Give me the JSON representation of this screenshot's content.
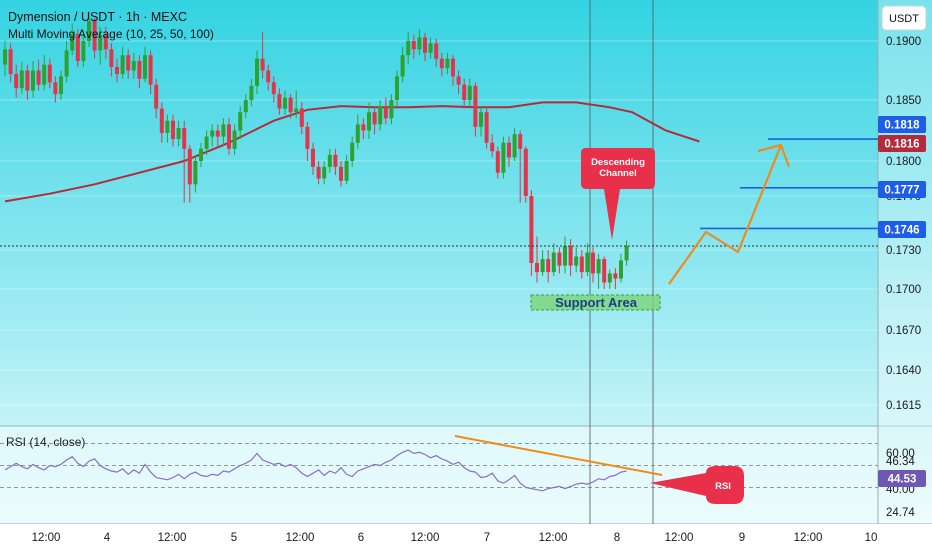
{
  "header": {
    "symbol_line": "Dymension / USDT · 1h · MEXC",
    "indicator_line": "Multi Moving Average (10, 25, 50, 100)",
    "currency_button": "USDT"
  },
  "colors": {
    "bg_top": "#3fd6e3",
    "bg_bottom": "#e6fbfd",
    "candle_up": "#2fa12f",
    "candle_down": "#e5334a",
    "ma": "#b52a3a",
    "blue_line": "#1e5ee6",
    "orange": "#f08a1c",
    "rsi_line": "#8a6fc9",
    "callout_red": "#e8304a",
    "support_fill": "#7fd67f"
  },
  "chart_data": {
    "type": "candlestick",
    "main_y_ticks": [
      "0.1900",
      "0.1850",
      "0.1800",
      "0.1770",
      "0.1730",
      "0.1700",
      "0.1670",
      "0.1640",
      "0.1615"
    ],
    "price_labels": [
      {
        "text": "0.1818",
        "value": 0.1818,
        "color": "#1e5ee6"
      },
      {
        "text": "0.1816",
        "value": 0.1816,
        "color": "#b52a3a"
      },
      {
        "text": "0.1777",
        "value": 0.1777,
        "color": "#1e5ee6"
      },
      {
        "text": "0.1746",
        "value": 0.1746,
        "color": "#1e5ee6"
      }
    ],
    "target_levels": [
      0.1818,
      0.1777,
      0.1746
    ],
    "last_price": 0.1733,
    "x_ticks": [
      "12:00",
      "4",
      "12:00",
      "5",
      "12:00",
      "6",
      "12:00",
      "7",
      "12:00",
      "8",
      "12:00",
      "9",
      "12:00",
      "10"
    ],
    "candles": [
      [
        0.188,
        0.1893,
        0.187,
        0.19
      ],
      [
        0.1893,
        0.1872,
        0.1865,
        0.1898
      ],
      [
        0.1872,
        0.186,
        0.1852,
        0.188
      ],
      [
        0.186,
        0.1875,
        0.1855,
        0.1882
      ],
      [
        0.1875,
        0.1858,
        0.185,
        0.188
      ],
      [
        0.1858,
        0.1875,
        0.1852,
        0.1883
      ],
      [
        0.1875,
        0.1863,
        0.1858,
        0.1884
      ],
      [
        0.1863,
        0.188,
        0.1858,
        0.1888
      ],
      [
        0.188,
        0.1865,
        0.186,
        0.1885
      ],
      [
        0.1865,
        0.1855,
        0.1848,
        0.187
      ],
      [
        0.1855,
        0.187,
        0.185,
        0.1875
      ],
      [
        0.187,
        0.1892,
        0.1865,
        0.19
      ],
      [
        0.1892,
        0.1906,
        0.1888,
        0.1915
      ],
      [
        0.1906,
        0.1883,
        0.1878,
        0.191
      ],
      [
        0.1883,
        0.19,
        0.1878,
        0.1908
      ],
      [
        0.19,
        0.1917,
        0.1895,
        0.1925
      ],
      [
        0.1917,
        0.1892,
        0.1885,
        0.192
      ],
      [
        0.1892,
        0.1905,
        0.188,
        0.1912
      ],
      [
        0.1905,
        0.1893,
        0.1885,
        0.1912
      ],
      [
        0.1893,
        0.1878,
        0.187,
        0.1898
      ],
      [
        0.1878,
        0.1872,
        0.1865,
        0.1885
      ],
      [
        0.1872,
        0.1888,
        0.1868,
        0.1895
      ],
      [
        0.1888,
        0.1875,
        0.1868,
        0.1893
      ],
      [
        0.1875,
        0.1883,
        0.1868,
        0.189
      ],
      [
        0.1883,
        0.1868,
        0.186,
        0.1888
      ],
      [
        0.1868,
        0.1888,
        0.1865,
        0.1895
      ],
      [
        0.1888,
        0.1863,
        0.1855,
        0.1892
      ],
      [
        0.1863,
        0.1843,
        0.1835,
        0.1868
      ],
      [
        0.1843,
        0.1823,
        0.1815,
        0.1848
      ],
      [
        0.1823,
        0.1833,
        0.1815,
        0.1838
      ],
      [
        0.1833,
        0.1818,
        0.1812,
        0.1838
      ],
      [
        0.1818,
        0.1827,
        0.1812,
        0.1833
      ],
      [
        0.1827,
        0.181,
        0.1765,
        0.1833
      ],
      [
        0.181,
        0.178,
        0.1765,
        0.1813
      ],
      [
        0.178,
        0.18,
        0.1773,
        0.1805
      ],
      [
        0.18,
        0.181,
        0.1795,
        0.1815
      ],
      [
        0.181,
        0.182,
        0.1805,
        0.1825
      ],
      [
        0.182,
        0.1825,
        0.1812,
        0.183
      ],
      [
        0.1825,
        0.182,
        0.1812,
        0.183
      ],
      [
        0.182,
        0.183,
        0.1812,
        0.1835
      ],
      [
        0.183,
        0.181,
        0.1805,
        0.1835
      ],
      [
        0.181,
        0.1825,
        0.1805,
        0.183
      ],
      [
        0.1825,
        0.184,
        0.1818,
        0.1845
      ],
      [
        0.184,
        0.185,
        0.1835,
        0.1855
      ],
      [
        0.185,
        0.1862,
        0.1845,
        0.1868
      ],
      [
        0.1862,
        0.1885,
        0.1855,
        0.1892
      ],
      [
        0.1885,
        0.1875,
        0.1868,
        0.1908
      ],
      [
        0.1875,
        0.1865,
        0.1858,
        0.188
      ],
      [
        0.1865,
        0.1855,
        0.1848,
        0.187
      ],
      [
        0.1855,
        0.1843,
        0.1838,
        0.186
      ],
      [
        0.1843,
        0.1852,
        0.1838,
        0.1858
      ],
      [
        0.1852,
        0.184,
        0.1835,
        0.1855
      ],
      [
        0.184,
        0.1843,
        0.1835,
        0.1858
      ],
      [
        0.1843,
        0.1828,
        0.1822,
        0.1848
      ],
      [
        0.1828,
        0.181,
        0.18,
        0.1832
      ],
      [
        0.181,
        0.1795,
        0.1788,
        0.1815
      ],
      [
        0.1795,
        0.1785,
        0.178,
        0.18
      ],
      [
        0.1785,
        0.1795,
        0.178,
        0.18
      ],
      [
        0.1795,
        0.1805,
        0.179,
        0.181
      ],
      [
        0.1805,
        0.1795,
        0.1788,
        0.181
      ],
      [
        0.1795,
        0.1783,
        0.1778,
        0.18
      ],
      [
        0.1783,
        0.18,
        0.178,
        0.1805
      ],
      [
        0.18,
        0.1815,
        0.1795,
        0.182
      ],
      [
        0.1815,
        0.183,
        0.181,
        0.1838
      ],
      [
        0.183,
        0.1825,
        0.1818,
        0.1835
      ],
      [
        0.1825,
        0.184,
        0.1818,
        0.1848
      ],
      [
        0.184,
        0.183,
        0.1822,
        0.1845
      ],
      [
        0.183,
        0.1845,
        0.1825,
        0.185
      ],
      [
        0.1845,
        0.1835,
        0.183,
        0.1852
      ],
      [
        0.1835,
        0.185,
        0.183,
        0.1855
      ],
      [
        0.185,
        0.187,
        0.1845,
        0.1875
      ],
      [
        0.187,
        0.1888,
        0.1865,
        0.1895
      ],
      [
        0.1888,
        0.19,
        0.188,
        0.1908
      ],
      [
        0.19,
        0.1893,
        0.1885,
        0.1905
      ],
      [
        0.1893,
        0.1903,
        0.1888,
        0.191
      ],
      [
        0.1903,
        0.189,
        0.1883,
        0.1907
      ],
      [
        0.189,
        0.1898,
        0.1885,
        0.1903
      ],
      [
        0.1898,
        0.1885,
        0.1878,
        0.1902
      ],
      [
        0.1885,
        0.1877,
        0.187,
        0.189
      ],
      [
        0.1877,
        0.1885,
        0.1872,
        0.189
      ],
      [
        0.1885,
        0.187,
        0.1862,
        0.1888
      ],
      [
        0.187,
        0.1863,
        0.1855,
        0.1875
      ],
      [
        0.1863,
        0.185,
        0.1843,
        0.1868
      ],
      [
        0.185,
        0.1862,
        0.1845,
        0.1868
      ],
      [
        0.1862,
        0.1828,
        0.182,
        0.1865
      ],
      [
        0.1828,
        0.184,
        0.182,
        0.1845
      ],
      [
        0.184,
        0.1815,
        0.181,
        0.1845
      ],
      [
        0.1815,
        0.1808,
        0.1803,
        0.1822
      ],
      [
        0.1808,
        0.179,
        0.1785,
        0.1812
      ],
      [
        0.179,
        0.1815,
        0.1785,
        0.182
      ],
      [
        0.1815,
        0.1803,
        0.1795,
        0.182
      ],
      [
        0.1803,
        0.1822,
        0.18,
        0.1827
      ],
      [
        0.1822,
        0.181,
        0.1765,
        0.1825
      ],
      [
        0.181,
        0.177,
        0.1765,
        0.1812
      ],
      [
        0.177,
        0.172,
        0.171,
        0.1775
      ],
      [
        0.172,
        0.1713,
        0.1705,
        0.174
      ],
      [
        0.1713,
        0.1723,
        0.171,
        0.173
      ],
      [
        0.1723,
        0.1713,
        0.1705,
        0.173
      ],
      [
        0.1713,
        0.1728,
        0.171,
        0.1735
      ],
      [
        0.1728,
        0.1718,
        0.1712,
        0.1732
      ],
      [
        0.1718,
        0.1733,
        0.1712,
        0.174
      ],
      [
        0.1733,
        0.1718,
        0.171,
        0.1738
      ],
      [
        0.1718,
        0.1725,
        0.1713,
        0.1732
      ],
      [
        0.1725,
        0.1713,
        0.1708,
        0.173
      ],
      [
        0.1713,
        0.1728,
        0.171,
        0.1735
      ],
      [
        0.1728,
        0.1712,
        0.1705,
        0.1732
      ],
      [
        0.1712,
        0.1723,
        0.17,
        0.1727
      ],
      [
        0.1723,
        0.1705,
        0.17,
        0.1725
      ],
      [
        0.1705,
        0.1712,
        0.17,
        0.1715
      ],
      [
        0.1712,
        0.1708,
        0.17,
        0.1716
      ],
      [
        0.1708,
        0.1722,
        0.1705,
        0.1727
      ],
      [
        0.1722,
        0.1733,
        0.1718,
        0.1737
      ]
    ],
    "moving_average": [
      [
        0,
        0.1766
      ],
      [
        8,
        0.1772
      ],
      [
        16,
        0.178
      ],
      [
        24,
        0.179
      ],
      [
        32,
        0.18
      ],
      [
        40,
        0.1815
      ],
      [
        48,
        0.1833
      ],
      [
        54,
        0.1842
      ],
      [
        60,
        0.1845
      ],
      [
        66,
        0.1844
      ],
      [
        72,
        0.1844
      ],
      [
        78,
        0.1845
      ],
      [
        84,
        0.1844
      ],
      [
        90,
        0.1844
      ],
      [
        96,
        0.1848
      ],
      [
        102,
        0.1848
      ],
      [
        108,
        0.1844
      ],
      [
        112,
        0.184
      ],
      [
        118,
        0.1825
      ],
      [
        124,
        0.1816
      ]
    ],
    "projection_path": [
      [
        669,
        284
      ],
      [
        706,
        232
      ],
      [
        738,
        252
      ],
      [
        781,
        145
      ]
    ],
    "rsi": {
      "label": "RSI (14, close)",
      "y_ticks": [
        "60.00",
        "46.34",
        "40.00",
        "24.74"
      ],
      "current_label": "44.53",
      "current_value": 44.53,
      "upper_band": 70,
      "lower_band": 30,
      "values": [
        46,
        49,
        52,
        49,
        47,
        51,
        48,
        46,
        50,
        49,
        51,
        55,
        58,
        52,
        49,
        54,
        56,
        50,
        47,
        45,
        44,
        47,
        42,
        46,
        43,
        51,
        44,
        39,
        38,
        37,
        39,
        42,
        38,
        42,
        44,
        41,
        40,
        42,
        41,
        45,
        44,
        47,
        50,
        52,
        55,
        61,
        55,
        53,
        51,
        52,
        49,
        51,
        48,
        43,
        40,
        43,
        46,
        41,
        45,
        43,
        48,
        42,
        40,
        45,
        47,
        49,
        51,
        50,
        53,
        55,
        59,
        62,
        64,
        61,
        62,
        60,
        57,
        59,
        56,
        54,
        51,
        53,
        48,
        45,
        44,
        39,
        40,
        43,
        36,
        34,
        37,
        41,
        34,
        30,
        29,
        28,
        27,
        29,
        30,
        31,
        29,
        31,
        33,
        34,
        33,
        35,
        38,
        37,
        40,
        41,
        44,
        45
      ]
    },
    "rsi_trend_line": [
      [
        455,
        436
      ],
      [
        662,
        475
      ]
    ]
  },
  "annotations": {
    "descending_channel": "Descending\nChannel",
    "support_area": "Support Area",
    "rsi_callout": "RSI"
  }
}
